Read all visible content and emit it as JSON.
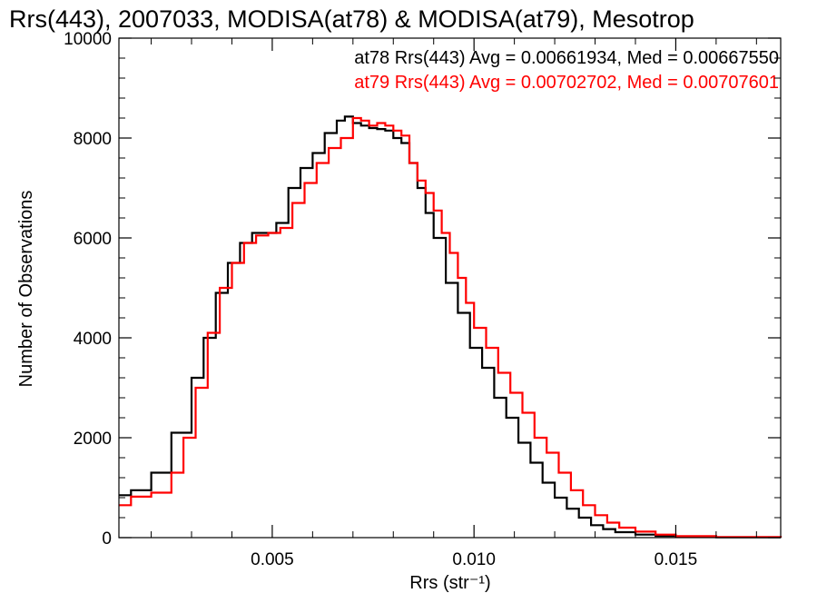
{
  "chart_data": {
    "type": "line",
    "step": true,
    "title": "Rrs(443), 2007033, MODISA(at78) & MODISA(at79), Mesotrop",
    "xlabel": "Rrs (str⁻¹)",
    "ylabel": "Number of Observations",
    "xlim": [
      0.0012,
      0.0176
    ],
    "ylim": [
      0,
      10000
    ],
    "xticks": [
      0.005,
      0.01,
      0.015
    ],
    "xtick_labels": [
      "0.005",
      "0.010",
      "0.015"
    ],
    "yticks": [
      0,
      2000,
      4000,
      6000,
      8000,
      10000
    ],
    "ytick_labels": [
      "0",
      "2000",
      "4000",
      "6000",
      "8000",
      "10000"
    ],
    "grid": false,
    "annotations": [
      {
        "text": "at78 Rrs(443) Avg = 0.00661934, Med = 0.00667550",
        "color": "#000000"
      },
      {
        "text": "at79 Rrs(443) Avg = 0.00702702, Med = 0.00707601",
        "color": "#ff0000"
      }
    ],
    "series": [
      {
        "color": "#000000",
        "x": [
          0.0012,
          0.0015,
          0.002,
          0.0025,
          0.003,
          0.0033,
          0.0036,
          0.0039,
          0.0042,
          0.0045,
          0.0048,
          0.0051,
          0.0054,
          0.0057,
          0.006,
          0.0063,
          0.0066,
          0.0068,
          0.007,
          0.0072,
          0.0074,
          0.0076,
          0.0078,
          0.008,
          0.0082,
          0.0084,
          0.0086,
          0.0088,
          0.009,
          0.0093,
          0.0096,
          0.0099,
          0.0102,
          0.0105,
          0.0108,
          0.0111,
          0.0114,
          0.0117,
          0.012,
          0.0123,
          0.0126,
          0.0129,
          0.0132,
          0.0135,
          0.014,
          0.0145,
          0.015,
          0.016,
          0.0176
        ],
        "y": [
          850,
          950,
          1300,
          2100,
          3200,
          4000,
          4900,
          5500,
          5900,
          6100,
          6100,
          6300,
          7000,
          7400,
          7700,
          8100,
          8350,
          8430,
          8300,
          8250,
          8200,
          8180,
          8150,
          8000,
          7900,
          7500,
          7000,
          6500,
          6000,
          5100,
          4500,
          3800,
          3400,
          2800,
          2400,
          1900,
          1500,
          1100,
          800,
          580,
          400,
          250,
          170,
          110,
          60,
          35,
          20,
          8,
          0
        ]
      },
      {
        "color": "#ff0000",
        "x": [
          0.0012,
          0.0015,
          0.002,
          0.0025,
          0.0028,
          0.0031,
          0.0034,
          0.0037,
          0.004,
          0.0043,
          0.0046,
          0.0049,
          0.0052,
          0.0055,
          0.0058,
          0.0061,
          0.0064,
          0.0067,
          0.007,
          0.0072,
          0.0074,
          0.0076,
          0.0078,
          0.008,
          0.0082,
          0.0084,
          0.0086,
          0.0088,
          0.009,
          0.0092,
          0.0094,
          0.0096,
          0.0098,
          0.01,
          0.0103,
          0.0106,
          0.0109,
          0.0112,
          0.0115,
          0.0118,
          0.0121,
          0.0124,
          0.0127,
          0.013,
          0.0133,
          0.0136,
          0.014,
          0.0145,
          0.015,
          0.016,
          0.0176
        ],
        "y": [
          650,
          820,
          900,
          1300,
          2000,
          3000,
          4100,
          5000,
          5500,
          5900,
          6050,
          6100,
          6200,
          6700,
          7100,
          7500,
          7800,
          8000,
          8400,
          8350,
          8250,
          8300,
          8250,
          8150,
          8050,
          7500,
          7150,
          6900,
          6550,
          6100,
          5700,
          5200,
          4700,
          4200,
          3800,
          3300,
          2900,
          2500,
          2000,
          1700,
          1300,
          950,
          650,
          450,
          300,
          200,
          120,
          60,
          30,
          12,
          0
        ]
      }
    ]
  }
}
